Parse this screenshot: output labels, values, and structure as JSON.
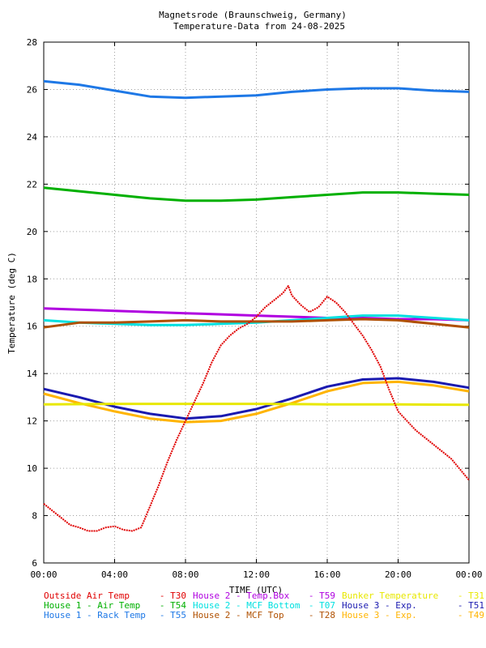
{
  "chart_data": {
    "type": "line",
    "title_line1": "Magnetsrode (Braunschweig, Germany)",
    "title_line2": "Temperature-Data from 24-08-2025",
    "xlabel": "TIME (UTC)",
    "ylabel": "Temperature (deg C)",
    "xlim": [
      0,
      24
    ],
    "ylim": [
      6,
      28
    ],
    "grid": true,
    "legend_position": "bottom",
    "x_ticks": [
      0,
      4,
      8,
      12,
      16,
      20,
      24
    ],
    "x_tick_labels": [
      "00:00",
      "04:00",
      "08:00",
      "12:00",
      "16:00",
      "20:00",
      "00:00"
    ],
    "y_ticks": [
      6,
      8,
      10,
      12,
      14,
      16,
      18,
      20,
      22,
      24,
      26,
      28
    ],
    "y_tick_labels": [
      "6",
      "8",
      "10",
      "12",
      "14",
      "16",
      "18",
      "20",
      "22",
      "24",
      "26",
      "28"
    ],
    "series": [
      {
        "name": "Outside Air Temp",
        "code": "T30",
        "color": "#e00000",
        "x": [
          0,
          0.5,
          1,
          1.5,
          2,
          2.5,
          3,
          3.5,
          4,
          4.5,
          5,
          5.5,
          6,
          6.5,
          7,
          7.5,
          8,
          8.5,
          9,
          9.5,
          10,
          10.5,
          11,
          11.5,
          12,
          12.5,
          13,
          13.5,
          13.8,
          14,
          14.5,
          15,
          15.5,
          16,
          16.5,
          17,
          17.5,
          18,
          18.5,
          19,
          19.5,
          20,
          20.5,
          21,
          22,
          23,
          24
        ],
        "y": [
          8.5,
          8.2,
          7.9,
          7.6,
          7.5,
          7.35,
          7.35,
          7.5,
          7.55,
          7.4,
          7.35,
          7.5,
          8.4,
          9.3,
          10.3,
          11.2,
          12.0,
          12.8,
          13.6,
          14.5,
          15.2,
          15.6,
          15.9,
          16.1,
          16.4,
          16.8,
          17.1,
          17.4,
          17.7,
          17.3,
          16.9,
          16.6,
          16.8,
          17.25,
          17.0,
          16.6,
          16.1,
          15.6,
          15.0,
          14.3,
          13.3,
          12.4,
          12.0,
          11.6,
          11.0,
          10.4,
          9.5
        ]
      },
      {
        "name": "House 1 - Air  Temp",
        "code": "T54",
        "color": "#00b000",
        "x": [
          0,
          2,
          4,
          6,
          8,
          10,
          12,
          14,
          16,
          18,
          20,
          22,
          24
        ],
        "y": [
          21.85,
          21.7,
          21.55,
          21.4,
          21.3,
          21.3,
          21.35,
          21.45,
          21.55,
          21.65,
          21.65,
          21.6,
          21.55
        ]
      },
      {
        "name": "House 1 - Rack Temp",
        "code": "T55",
        "color": "#1e78e6",
        "x": [
          0,
          2,
          4,
          6,
          8,
          10,
          12,
          14,
          16,
          18,
          20,
          22,
          24
        ],
        "y": [
          26.35,
          26.2,
          25.95,
          25.7,
          25.65,
          25.7,
          25.75,
          25.9,
          26.0,
          26.05,
          26.05,
          25.95,
          25.9
        ]
      },
      {
        "name": "House 2 - Temp.Box",
        "code": "T59",
        "color": "#b000e0",
        "x": [
          0,
          2,
          4,
          6,
          8,
          10,
          12,
          14,
          16,
          18,
          20,
          22,
          24
        ],
        "y": [
          16.75,
          16.7,
          16.65,
          16.6,
          16.55,
          16.5,
          16.45,
          16.4,
          16.35,
          16.35,
          16.3,
          16.3,
          16.25
        ]
      },
      {
        "name": "House 2 - MCF Bottom",
        "code": "T07",
        "color": "#00e0e0",
        "x": [
          0,
          2,
          4,
          6,
          8,
          10,
          12,
          14,
          16,
          18,
          20,
          22,
          24
        ],
        "y": [
          16.25,
          16.15,
          16.1,
          16.05,
          16.05,
          16.1,
          16.15,
          16.25,
          16.35,
          16.45,
          16.45,
          16.35,
          16.25
        ]
      },
      {
        "name": "House 2 - MCF Top",
        "code": "T28",
        "color": "#b05000",
        "x": [
          0,
          2,
          4,
          6,
          8,
          10,
          12,
          14,
          16,
          18,
          20,
          22,
          24
        ],
        "y": [
          15.95,
          16.15,
          16.15,
          16.2,
          16.25,
          16.2,
          16.2,
          16.2,
          16.25,
          16.3,
          16.25,
          16.1,
          15.95
        ]
      },
      {
        "name": "House 3 - Exp.",
        "code": "T51",
        "color": "#1a1ab0",
        "x": [
          0,
          2,
          4,
          6,
          8,
          10,
          12,
          14,
          16,
          18,
          20,
          22,
          24
        ],
        "y": [
          13.35,
          13.0,
          12.6,
          12.3,
          12.1,
          12.2,
          12.5,
          12.95,
          13.45,
          13.75,
          13.8,
          13.65,
          13.4
        ]
      },
      {
        "name": "Bunker Temperature",
        "code": "T31",
        "color": "#e8e800",
        "x": [
          0,
          4,
          8,
          12,
          16,
          20,
          24
        ],
        "y": [
          12.7,
          12.72,
          12.72,
          12.72,
          12.7,
          12.7,
          12.68
        ]
      },
      {
        "name": "House 3 - Exp.",
        "code": "T49",
        "color": "#ffb400",
        "x": [
          0,
          2,
          4,
          6,
          8,
          10,
          12,
          14,
          16,
          18,
          20,
          22,
          24
        ],
        "y": [
          13.15,
          12.75,
          12.4,
          12.1,
          11.95,
          12.0,
          12.3,
          12.75,
          13.25,
          13.6,
          13.65,
          13.5,
          13.25
        ]
      }
    ],
    "legend_layout": [
      [
        0,
        3,
        7
      ],
      [
        1,
        4,
        6
      ],
      [
        2,
        5,
        8
      ]
    ]
  }
}
